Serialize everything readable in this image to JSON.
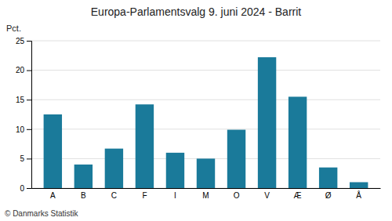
{
  "chart_data": {
    "type": "bar",
    "title": "Europa-Parlamentsvalg 9. juni 2024 - Barrit",
    "categories": [
      "A",
      "B",
      "C",
      "F",
      "I",
      "M",
      "O",
      "V",
      "Æ",
      "Ø",
      "Å"
    ],
    "values": [
      12.5,
      4.0,
      6.7,
      14.2,
      6.0,
      5.0,
      9.9,
      22.2,
      15.5,
      3.5,
      1.0
    ],
    "color": "#1a7a9a",
    "ylabel": "Pct.",
    "ylim": [
      0,
      25
    ],
    "yticks": [
      0,
      5,
      10,
      15,
      20,
      25
    ],
    "grid": true,
    "annotations": [
      "© Danmarks Statistik"
    ]
  }
}
